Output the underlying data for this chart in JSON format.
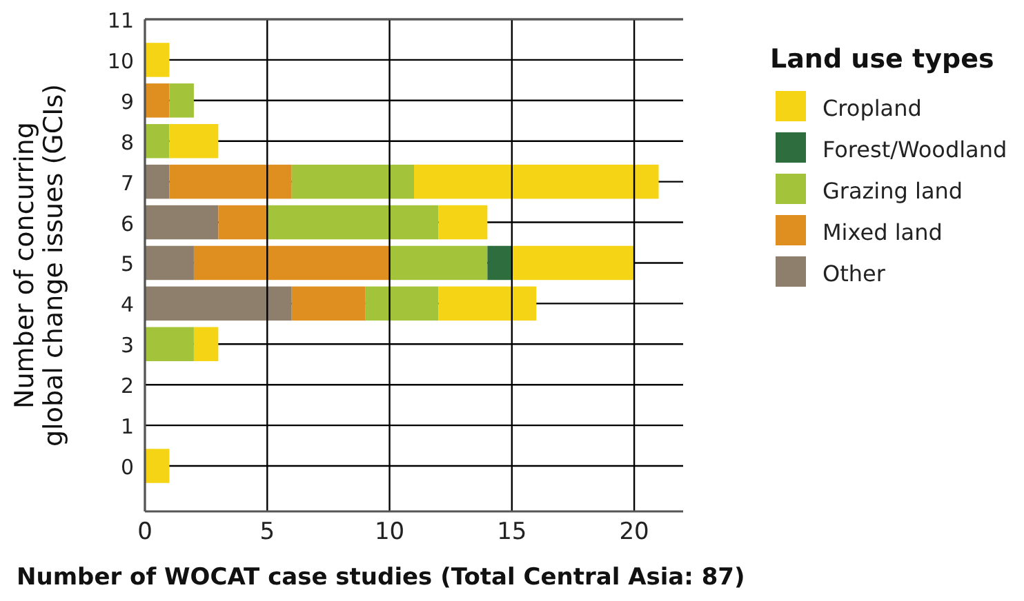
{
  "chart_data": {
    "type": "bar",
    "orientation": "horizontal",
    "stacked": true,
    "xlabel": "Number of WOCAT case studies (Total Central Asia: 87)",
    "ylabel": "Number of concurring global change issues (GCIs)",
    "legend_title": "Land use types",
    "legend": "right",
    "grid": true,
    "categories": [
      "11",
      "10",
      "9",
      "8",
      "7",
      "6",
      "5",
      "4",
      "3",
      "2",
      "1",
      "0"
    ],
    "xlim": [
      0,
      22
    ],
    "xticks": [
      0,
      5,
      10,
      15,
      20
    ],
    "series": [
      {
        "name": "Other",
        "color": "#8e7e6c",
        "values": [
          0,
          0,
          0,
          0,
          1,
          3,
          2,
          6,
          0,
          0,
          0,
          0
        ]
      },
      {
        "name": "Mixed land",
        "color": "#df8f1f",
        "values": [
          0,
          0,
          1,
          0,
          5,
          2,
          8,
          3,
          0,
          0,
          0,
          0
        ]
      },
      {
        "name": "Grazing land",
        "color": "#a3c43a",
        "values": [
          0,
          0,
          1,
          1,
          5,
          7,
          4,
          3,
          2,
          0,
          0,
          0
        ]
      },
      {
        "name": "Forest/Woodland",
        "color": "#2e6e3e",
        "values": [
          0,
          0,
          0,
          0,
          0,
          0,
          1,
          0,
          0,
          0,
          0,
          0
        ]
      },
      {
        "name": "Cropland",
        "color": "#f5d415",
        "values": [
          0,
          1,
          0,
          2,
          10,
          2,
          5,
          4,
          1,
          0,
          0,
          1
        ]
      }
    ]
  }
}
